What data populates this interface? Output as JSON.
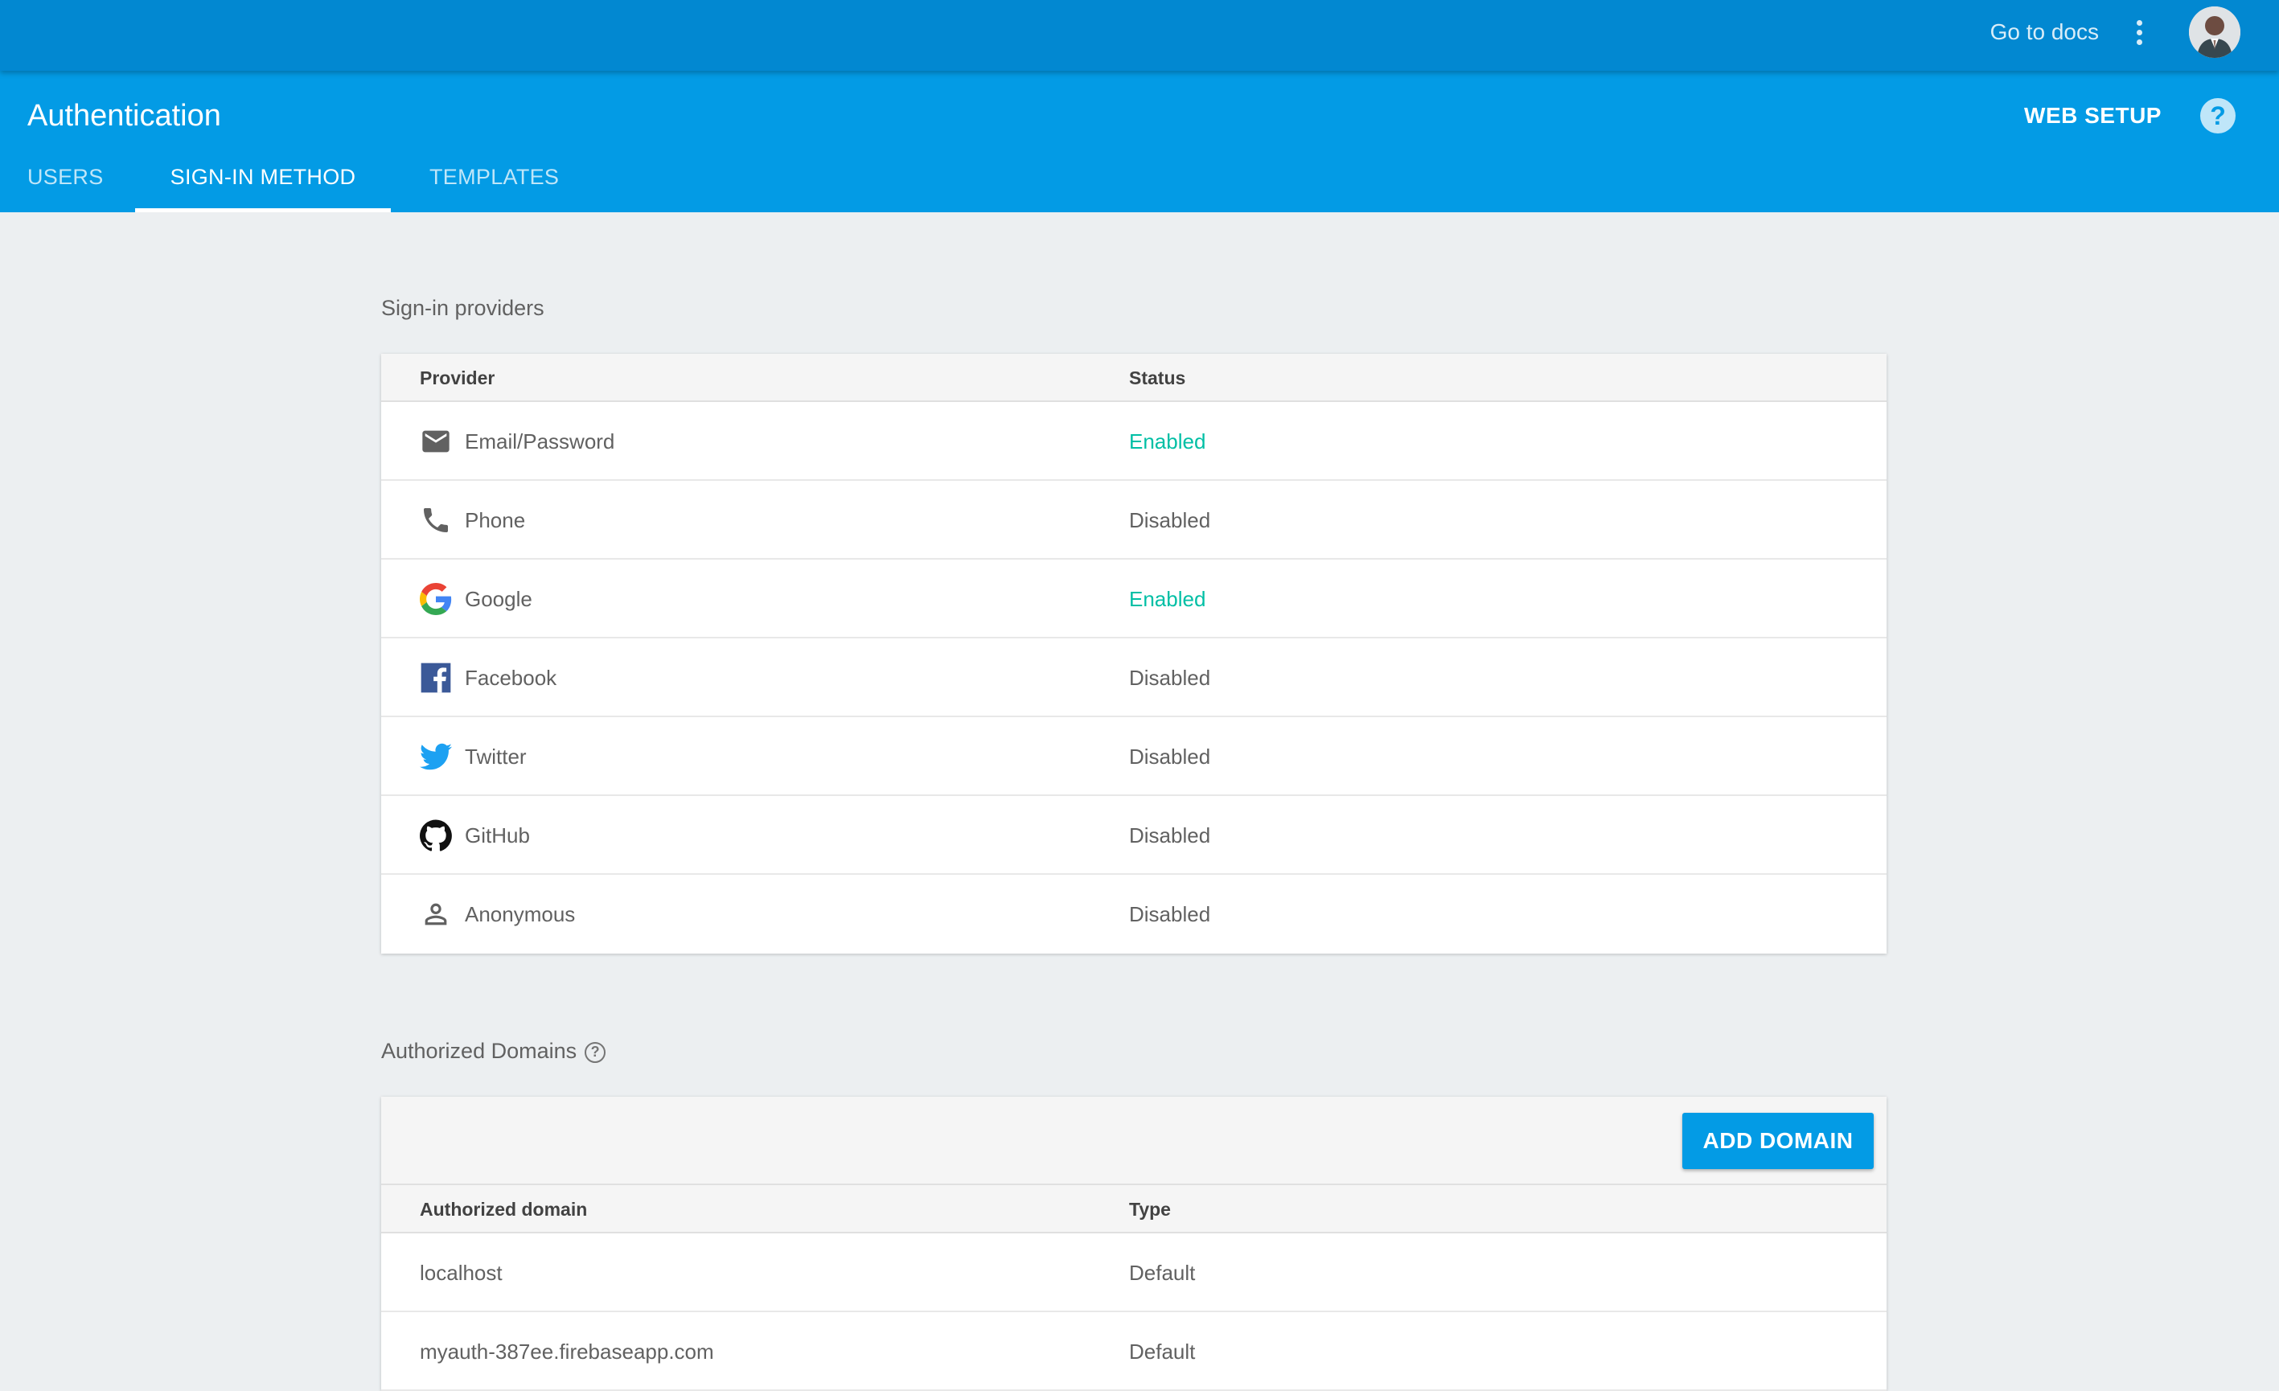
{
  "topbar": {
    "docs_label": "Go to docs",
    "menu_icon": "more-vert-icon",
    "avatar_icon": "user-avatar"
  },
  "header": {
    "title": "Authentication",
    "web_setup": "WEB SETUP",
    "help_icon": "help-icon",
    "help_glyph": "?",
    "tabs": [
      {
        "label": "USERS",
        "active": false
      },
      {
        "label": "SIGN-IN METHOD",
        "active": true
      },
      {
        "label": "TEMPLATES",
        "active": false
      }
    ]
  },
  "providers": {
    "section_title": "Sign-in providers",
    "columns": {
      "provider": "Provider",
      "status": "Status"
    },
    "rows": [
      {
        "name": "Email/Password",
        "status": "Enabled",
        "icon": "email-icon"
      },
      {
        "name": "Phone",
        "status": "Disabled",
        "icon": "phone-icon"
      },
      {
        "name": "Google",
        "status": "Enabled",
        "icon": "google-icon"
      },
      {
        "name": "Facebook",
        "status": "Disabled",
        "icon": "facebook-icon"
      },
      {
        "name": "Twitter",
        "status": "Disabled",
        "icon": "twitter-icon"
      },
      {
        "name": "GitHub",
        "status": "Disabled",
        "icon": "github-icon"
      },
      {
        "name": "Anonymous",
        "status": "Disabled",
        "icon": "person-icon"
      }
    ]
  },
  "domains": {
    "section_title": "Authorized Domains",
    "help_glyph": "?",
    "add_button": "ADD DOMAIN",
    "columns": {
      "domain": "Authorized domain",
      "type": "Type"
    },
    "rows": [
      {
        "domain": "localhost",
        "type": "Default"
      },
      {
        "domain": "myauth-387ee.firebaseapp.com",
        "type": "Default"
      }
    ]
  },
  "colors": {
    "topbar": "#0288d1",
    "header": "#039be5",
    "enabled": "#00bfa5",
    "background": "#eceff1"
  }
}
